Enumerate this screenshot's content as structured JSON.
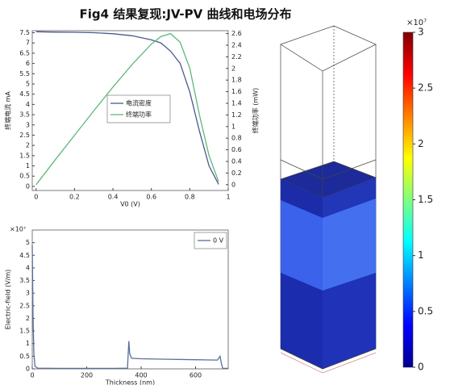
{
  "chart_data": [
    {
      "type": "line",
      "title": "Fig4 结果复现:JV-PV 曲线和电场分布",
      "x": [
        0,
        0.1,
        0.2,
        0.3,
        0.4,
        0.5,
        0.6,
        0.65,
        0.7,
        0.75,
        0.8,
        0.85,
        0.9,
        0.95
      ],
      "xlim": [
        -0.02,
        1.0
      ],
      "xticks": [
        0,
        0.2,
        0.4,
        0.6,
        0.8,
        1
      ],
      "ylim": [
        -0.2,
        7.6
      ],
      "yticks": [
        0,
        0.5,
        1,
        1.5,
        2,
        2.5,
        3,
        3.5,
        4,
        4.5,
        5,
        5.5,
        6,
        6.5,
        7,
        7.5
      ],
      "y2lim": [
        -0.1,
        2.65
      ],
      "y2ticks": [
        0,
        0.2,
        0.4,
        0.6,
        0.8,
        1,
        1.2,
        1.4,
        1.6,
        1.8,
        2,
        2.2,
        2.4,
        2.6
      ],
      "xlabel": "V0 (V)",
      "ylabel": "终端电流 mA",
      "y2label": "终端功率 (mW)",
      "legend": "center",
      "series": [
        {
          "name": "电流密度",
          "color": "#4a5a8a",
          "values": [
            7.55,
            7.53,
            7.52,
            7.5,
            7.45,
            7.35,
            7.15,
            7.0,
            6.6,
            6.0,
            4.6,
            2.7,
            1.0,
            0.1
          ]
        },
        {
          "name": "终端功率",
          "color": "#5cb87a",
          "axis": "y2",
          "values": [
            0,
            0.43,
            0.85,
            1.27,
            1.68,
            2.07,
            2.42,
            2.55,
            2.6,
            2.45,
            2.0,
            1.2,
            0.5,
            0.05
          ]
        }
      ]
    },
    {
      "type": "line",
      "x": [
        0,
        3,
        6,
        10,
        20,
        100,
        200,
        300,
        350,
        352,
        355,
        358,
        365,
        400,
        500,
        600,
        680,
        690,
        695,
        700,
        720
      ],
      "xlim": [
        0,
        720
      ],
      "xticks": [
        0,
        200,
        400,
        600
      ],
      "ylim": [
        0,
        5.5
      ],
      "yticks": [
        0,
        0.5,
        1,
        1.5,
        2,
        2.5,
        3,
        3.5,
        4,
        4.5,
        5
      ],
      "y_multiplier": "×10⁷",
      "xlabel": "Thickness (nm)",
      "ylabel": "Electric-field (V/m)",
      "legend": "upper right",
      "series": [
        {
          "name": "0 V",
          "color": "#5a6e9a",
          "values": [
            4.9,
            2.0,
            0.6,
            0.1,
            0.03,
            0.02,
            0.02,
            0.02,
            0.03,
            0.5,
            1.1,
            0.6,
            0.42,
            0.4,
            0.38,
            0.36,
            0.35,
            0.5,
            0.2,
            0.02,
            0.02
          ]
        }
      ]
    },
    {
      "type": "colorbar",
      "clim": [
        0,
        3
      ],
      "ticks": [
        0,
        0.5,
        1,
        1.5,
        2,
        2.5,
        3
      ],
      "multiplier": "×10⁷",
      "colormap": "jet"
    }
  ]
}
